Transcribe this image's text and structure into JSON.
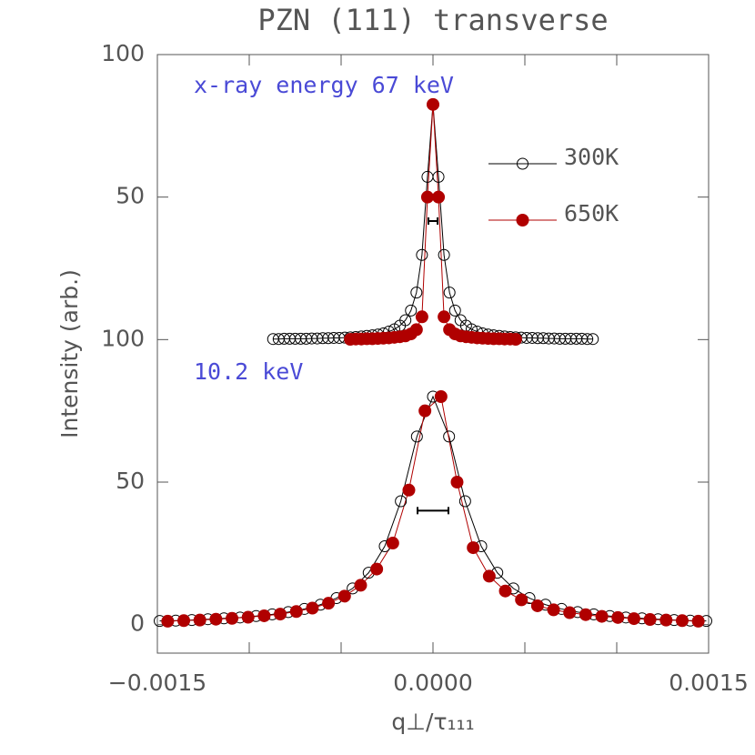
{
  "chart_data": {
    "type": "scatter",
    "title": "PZN (111) transverse",
    "xlabel": "q⊥/τ₁₁₁",
    "ylabel": "Intensity (arb.)",
    "annotations": [
      "x-ray energy 67 keV",
      "10.2 keV"
    ],
    "xlim": [
      -0.0015,
      0.0015
    ],
    "xticks": [
      {
        "value": -0.0015,
        "label": "−0.0015"
      },
      {
        "value": 0,
        "label": "0.0000"
      },
      0.0015
    ],
    "xminorticks": [
      -0.001,
      -0.0005,
      0.0005,
      0.001
    ],
    "ylim": [
      -10,
      200
    ],
    "yticks": [
      0,
      50,
      100,
      {
        "value": 150,
        "label": "50"
      },
      {
        "value": 200,
        "label": "100"
      }
    ],
    "legend": "upper right",
    "series": [
      {
        "name": "300K",
        "color": "#000000",
        "marker": "open",
        "x": [
          -0.0014875,
          -0.0014,
          -0.0013125,
          -0.001225,
          -0.0011375,
          -0.00105,
          -0.0009625,
          -0.000875,
          -0.0007875,
          -0.0007,
          -0.0006125,
          -0.000525,
          -0.0004375,
          -0.00035,
          -0.0002625,
          -0.000175,
          -8.75e-05,
          0,
          8.75e-05,
          0.000175,
          0.0002625,
          0.00035,
          0.0004375,
          0.000525,
          0.0006125,
          0.0007,
          0.0007875,
          0.000875,
          0.0009625,
          0.00105,
          0.0011375,
          0.001225,
          0.0013125,
          0.0014,
          0.0014875
        ],
        "values": [
          1.3,
          1.4,
          1.6,
          1.9,
          2.2,
          2.5,
          3.0,
          3.6,
          4.4,
          5.5,
          7.0,
          9.3,
          12.7,
          18.2,
          27.5,
          43.3,
          66.0,
          80,
          66.0,
          43.3,
          27.5,
          18.2,
          12.7,
          9.3,
          7.0,
          5.5,
          4.4,
          3.6,
          3.0,
          2.5,
          2.2,
          1.9,
          1.6,
          1.4,
          1.3
        ]
      },
      {
        "name": "650K",
        "color": "#b00000",
        "marker": "filled",
        "x": [
          -0.00144375,
          -0.00135625,
          -0.00126875,
          -0.00118125,
          -0.00109375,
          -0.00100625,
          -0.00091875,
          -0.00083125,
          -0.00074375,
          -0.00065625,
          -0.00056875,
          -0.00048125,
          -0.00039375,
          -0.00030625,
          -0.00021875,
          -0.00013125,
          -4.375e-05,
          4.375e-05,
          0.00013125,
          0.00021875,
          0.00030625,
          0.00039375,
          0.00048125,
          0.00056875,
          0.00065625,
          0.00074375,
          0.00083125,
          0.00091875,
          0.00100625,
          0.00109375,
          0.00118125,
          0.00126875,
          0.00135625,
          0.00144375
        ],
        "values": [
          1.2,
          1.4,
          1.6,
          1.9,
          2.2,
          2.6,
          3.1,
          3.7,
          4.6,
          5.8,
          7.5,
          10.0,
          13.8,
          19.5,
          28.6,
          47.2,
          75.0,
          80.0,
          50.0,
          27.0,
          17.0,
          11.8,
          8.7,
          6.6,
          5.2,
          4.2,
          3.5,
          2.9,
          2.5,
          2.1,
          1.8,
          1.6,
          1.4,
          1.2
        ]
      },
      {
        "color": "#000000",
        "marker": "open",
        "x": [
          -0.00087,
          -0.00084,
          -0.00081,
          -0.00078,
          -0.00075,
          -0.00072,
          -0.00069,
          -0.00066,
          -0.00063,
          -0.0006,
          -0.00057,
          -0.00054,
          -0.00051,
          -0.00048,
          -0.00045,
          -0.00042,
          -0.00039,
          -0.00036,
          -0.00033,
          -0.0003,
          -0.00027,
          -0.00024,
          -0.00021,
          -0.00018,
          -0.00015,
          -0.00012,
          -9e-05,
          -6e-05,
          -3e-05,
          0,
          3e-05,
          6e-05,
          9e-05,
          0.00012,
          0.00015,
          0.00018,
          0.00021,
          0.00024,
          0.00027,
          0.0003,
          0.00033,
          0.00036,
          0.00039,
          0.00042,
          0.00045,
          0.00048,
          0.00051,
          0.00054,
          0.00057,
          0.0006,
          0.00063,
          0.00066,
          0.00069,
          0.00072,
          0.00075,
          0.00078,
          0.00081,
          0.00084,
          0.00087
        ],
        "values": [
          100.2,
          100.2,
          100.3,
          100.3,
          100.3,
          100.3,
          100.3,
          100.4,
          100.4,
          100.5,
          100.5,
          100.6,
          100.6,
          100.7,
          100.8,
          100.9,
          101.1,
          101.3,
          101.5,
          101.8,
          102.2,
          102.8,
          103.6,
          104.9,
          106.8,
          110.2,
          116.5,
          129.7,
          157.1,
          182.5,
          157.1,
          129.7,
          116.5,
          110.2,
          106.8,
          104.9,
          103.6,
          102.8,
          102.2,
          101.8,
          101.5,
          101.3,
          101.1,
          100.9,
          100.8,
          100.7,
          100.6,
          100.6,
          100.5,
          100.5,
          100.4,
          100.4,
          100.3,
          100.3,
          100.3,
          100.3,
          100.3,
          100.2,
          100.2
        ]
      },
      {
        "color": "#b00000",
        "marker": "filled",
        "x": [
          -0.00045,
          -0.00042,
          -0.00039,
          -0.00036,
          -0.00033,
          -0.0003,
          -0.00027,
          -0.00024,
          -0.00021,
          -0.00018,
          -0.00015,
          -0.00012,
          -9e-05,
          -6e-05,
          -3e-05,
          0,
          3e-05,
          6e-05,
          9e-05,
          0.00012,
          0.00015,
          0.00018,
          0.00021,
          0.00024,
          0.00027,
          0.0003,
          0.00033,
          0.00036,
          0.00039,
          0.00042,
          0.00045
        ],
        "values": [
          100.1,
          100.2,
          100.2,
          100.3,
          100.3,
          100.4,
          100.5,
          100.6,
          100.8,
          101.0,
          101.3,
          102.0,
          103.5,
          108.0,
          150.0,
          182.5,
          150.0,
          108.0,
          103.5,
          102.0,
          101.3,
          101.0,
          100.8,
          100.6,
          100.5,
          100.4,
          100.3,
          100.3,
          100.2,
          100.2,
          100.1
        ]
      }
    ],
    "resolution_bars": [
      {
        "x": [
          -8.4e-05,
          8.4e-05
        ],
        "y": 40
      },
      {
        "x": [
          -2.5e-05,
          2.5e-05
        ],
        "y": 141.6
      }
    ]
  }
}
